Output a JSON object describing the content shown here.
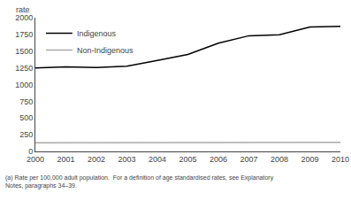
{
  "chart_data": {
    "type": "line",
    "ylabel": "rate",
    "x": [
      2000,
      2001,
      2002,
      2003,
      2004,
      2005,
      2006,
      2007,
      2008,
      2009,
      2010
    ],
    "series": [
      {
        "name": "Indigenous",
        "color": "#000000",
        "values": [
          1250,
          1265,
          1255,
          1275,
          1360,
          1450,
          1620,
          1730,
          1745,
          1860,
          1870
        ]
      },
      {
        "name": "Non-Indigenous",
        "color": "#aaaaaa",
        "values": [
          130,
          130,
          130,
          130,
          130,
          132,
          132,
          132,
          132,
          135,
          135
        ]
      }
    ],
    "xlim": [
      2000,
      2010
    ],
    "xticks": [
      2000,
      2001,
      2002,
      2003,
      2004,
      2005,
      2006,
      2007,
      2008,
      2009,
      2010
    ],
    "ylim": [
      0,
      2000
    ],
    "yticks": [
      0,
      250,
      500,
      750,
      1000,
      1250,
      1500,
      1750,
      2000
    ],
    "annotations": [
      "(a) Rate per 100,000 adult population.  For a definition of age standardised rates, see Explanatory",
      "Notes, paragraphs 34–39."
    ],
    "legend": "upper left",
    "grid": false
  }
}
